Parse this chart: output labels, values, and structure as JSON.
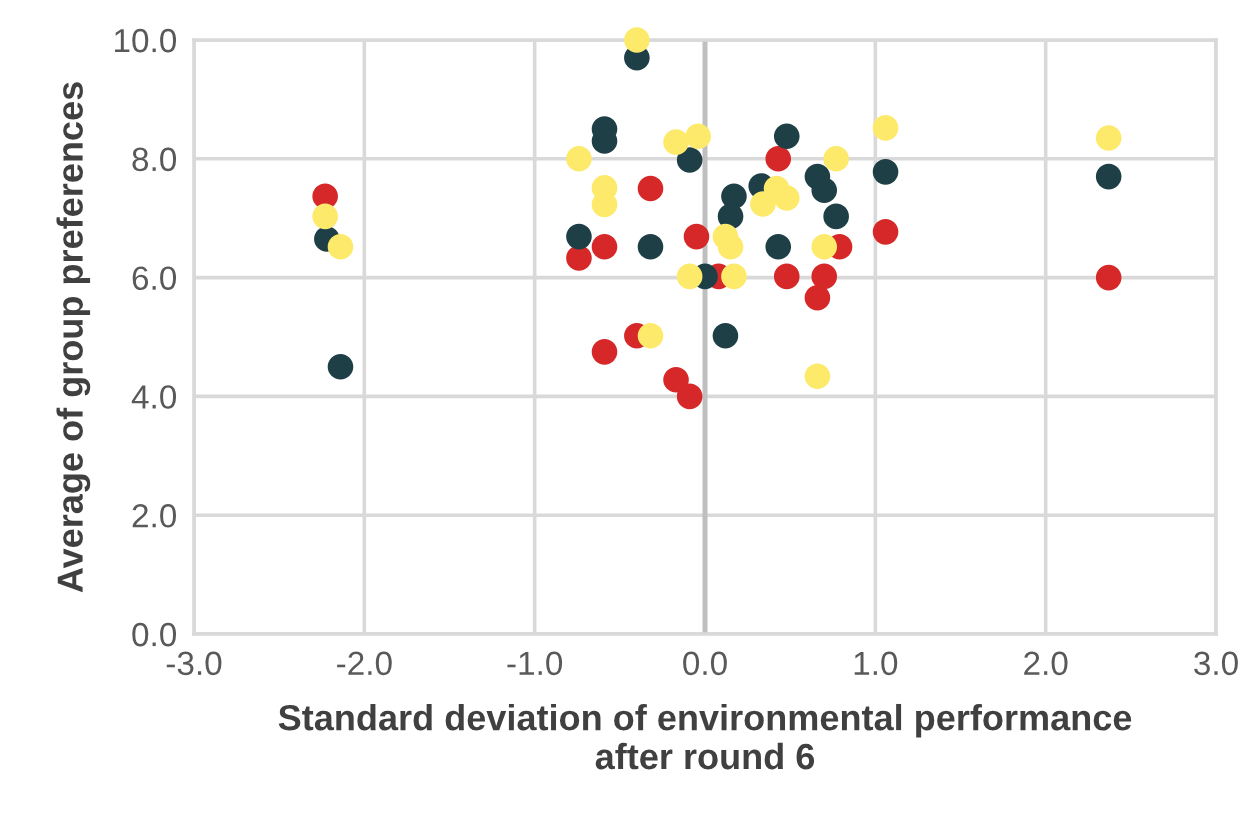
{
  "chart_data": {
    "type": "scatter",
    "xlabel": "Standard deviation of environmental performance\nafter round 6",
    "ylabel": "Average of group preferences",
    "xlim": [
      -3,
      3
    ],
    "ylim": [
      0,
      10
    ],
    "xticks": [
      {
        "value": -3,
        "label": "-3.0"
      },
      {
        "value": -2,
        "label": "-2.0"
      },
      {
        "value": -1,
        "label": "-1.0"
      },
      {
        "value": 0,
        "label": "0.0"
      },
      {
        "value": 1,
        "label": "1.0"
      },
      {
        "value": 2,
        "label": "2.0"
      },
      {
        "value": 3,
        "label": "3.0"
      }
    ],
    "yticks": [
      {
        "value": 0,
        "label": "0.0"
      },
      {
        "value": 2,
        "label": "2.0"
      },
      {
        "value": 4,
        "label": "4.0"
      },
      {
        "value": 6,
        "label": "6.0"
      },
      {
        "value": 8,
        "label": "8.0"
      },
      {
        "value": 10,
        "label": "10.0"
      }
    ],
    "grid": true,
    "marker": "circle",
    "legend": false,
    "ref_lines": [
      {
        "axis": "x",
        "value": 0,
        "color": "#bfbfbf"
      }
    ],
    "series": [
      {
        "color": "#d62828",
        "x": [
          -2.23,
          -0.74,
          -0.59,
          -0.32,
          -0.05,
          0.08,
          0.48,
          0.79,
          0.7,
          0.66,
          0.43,
          1.06,
          -0.59,
          -0.4,
          -0.17,
          -0.09,
          2.37
        ],
        "values": [
          7.37,
          6.33,
          6.52,
          7.5,
          6.69,
          6.02,
          6.02,
          6.52,
          6.02,
          5.66,
          8.0,
          6.77,
          4.75,
          5.02,
          4.28,
          4.0,
          6.0
        ]
      },
      {
        "color": "#1f3f47",
        "x": [
          -2.22,
          -2.14,
          -0.4,
          -0.59,
          -0.59,
          -0.09,
          0.48,
          0.17,
          0.15,
          0.33,
          0.66,
          0.7,
          0.77,
          1.06,
          -0.74,
          -0.32,
          0.0,
          0.43,
          0.12,
          2.37
        ],
        "values": [
          6.65,
          4.5,
          9.7,
          8.5,
          8.3,
          7.98,
          8.38,
          7.37,
          7.03,
          7.54,
          7.7,
          7.47,
          7.03,
          7.78,
          6.69,
          6.52,
          6.02,
          6.52,
          5.02,
          7.7
        ]
      },
      {
        "color": "#fde96a",
        "x": [
          -2.23,
          -2.14,
          -0.4,
          -0.74,
          -0.59,
          -0.59,
          -0.17,
          -0.04,
          -0.09,
          0.12,
          0.15,
          0.17,
          0.34,
          0.42,
          0.48,
          0.77,
          0.7,
          0.66,
          1.06,
          -0.32,
          2.37
        ],
        "values": [
          7.03,
          6.52,
          10.0,
          8.0,
          7.51,
          7.23,
          8.28,
          8.38,
          6.02,
          6.69,
          6.52,
          6.02,
          7.24,
          7.5,
          7.34,
          8.0,
          6.52,
          4.34,
          8.52,
          5.02,
          8.35
        ]
      }
    ]
  }
}
